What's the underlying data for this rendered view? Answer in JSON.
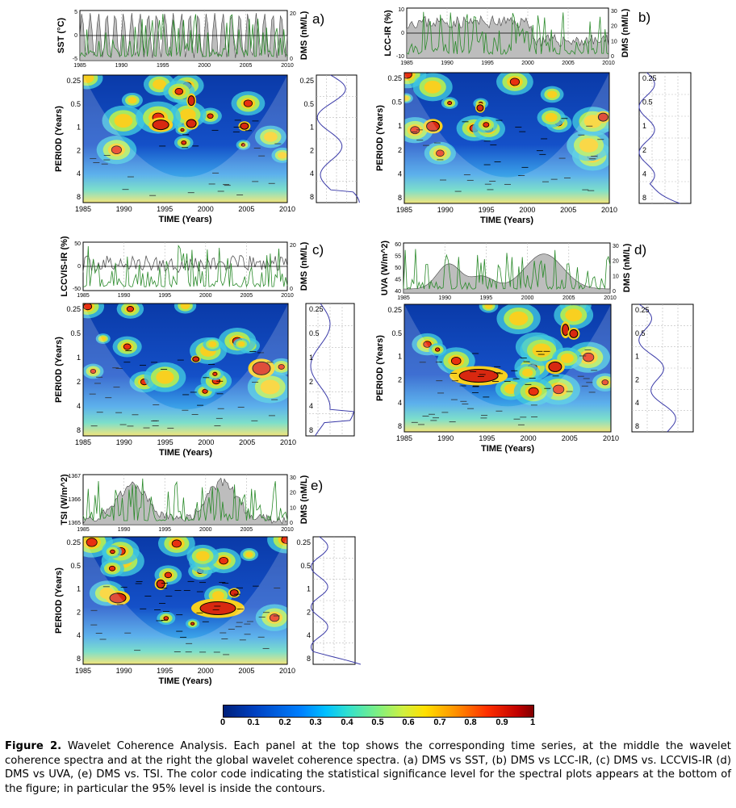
{
  "figure": {
    "caption_label": "Figure 2.",
    "caption_text": " Wavelet Coherence Analysis. Each panel at the top shows the corresponding time series, at the middle the wavelet coherence spectra and at the right the global wavelet coherence spectra. (a) DMS vs SST, (b) DMS vs LCC-IR, (c) DMS vs. LCCVIS-IR (d) DMS vs UVA, (e) DMS vs. TSI. The color code indicating the statistical significance level for the spectral plots appears at the bottom of the figure; in particular the 95% level is inside the contours."
  },
  "colorbar": {
    "ticks": [
      "0",
      "0.1",
      "0.2",
      "0.3",
      "0.4",
      "0.5",
      "0.6",
      "0.7",
      "0.8",
      "0.9",
      "1"
    ]
  },
  "common": {
    "time_axis_label": "TIME (Years)",
    "period_axis_label": "PERIOD (Years)",
    "dms_label": "DMS (nM/L)",
    "year_ticks": [
      "1985",
      "1990",
      "1995",
      "2000",
      "2005",
      "2010"
    ],
    "period_ticks": [
      "0.25",
      "0.5",
      "1",
      "2",
      "4",
      "8"
    ],
    "colors": {
      "dms_line": "#2a8a2a",
      "series_fill": "#bdbdbd",
      "global_line": "#3a3aa8"
    }
  },
  "panels": [
    {
      "id": "a",
      "letter": "a)",
      "ylabel": "SST (°C)",
      "yticks": [
        "5",
        "0",
        "-5"
      ],
      "dms_ticks": [
        "20",
        "0"
      ],
      "series_kind": "oscillation"
    },
    {
      "id": "b",
      "letter": "b)",
      "ylabel": "LCC-IR (%)",
      "yticks": [
        "10",
        "0",
        "-10"
      ],
      "dms_ticks": [
        "30",
        "20",
        "10",
        "0"
      ],
      "series_kind": "area"
    },
    {
      "id": "c",
      "letter": "c)",
      "ylabel": "LCCVIS-IR (%)",
      "yticks": [
        "50",
        "0",
        "-50"
      ],
      "dms_ticks": [
        "20",
        "0"
      ],
      "series_kind": "noise"
    },
    {
      "id": "d",
      "letter": "d)",
      "ylabel": "UVA (W/m^2)",
      "yticks": [
        "60",
        "55",
        "50",
        "45",
        "40"
      ],
      "dms_ticks": [
        "30",
        "20",
        "10",
        "0"
      ],
      "series_kind": "hump"
    },
    {
      "id": "e",
      "letter": "e)",
      "ylabel": "TSI (W/m^2)",
      "yticks": [
        "1367",
        "1366",
        "1365"
      ],
      "dms_ticks": [
        "30",
        "20",
        "10",
        "0"
      ],
      "series_kind": "tsi"
    }
  ]
}
